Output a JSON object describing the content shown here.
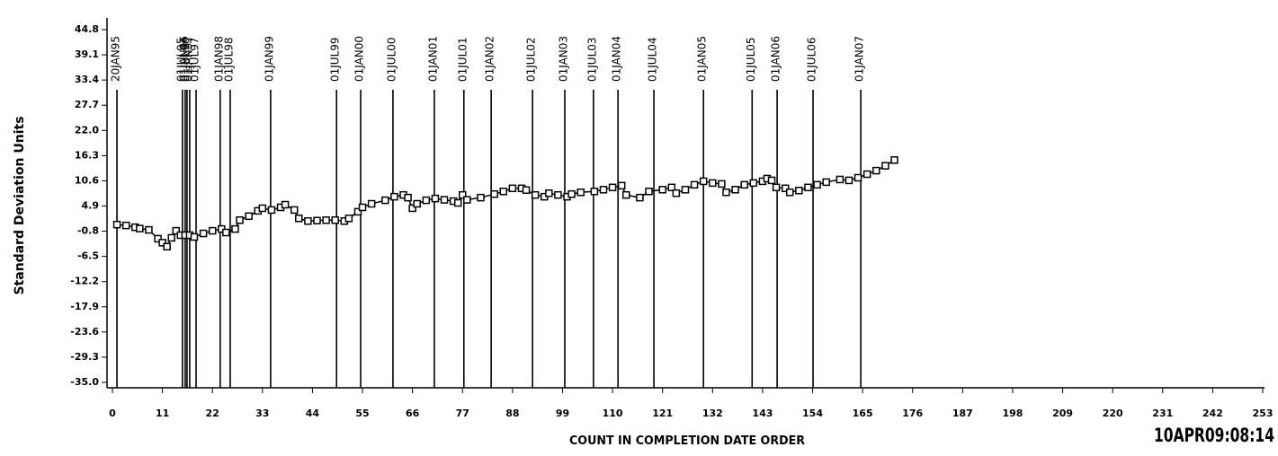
{
  "chart_data": {
    "type": "line",
    "y_label": "Standard Deviation Units",
    "x_label": "COUNT IN COMPLETION DATE ORDER",
    "timestamp": "10APR09:08:14",
    "color": "#000000",
    "marker": "square",
    "xlim": [
      0,
      253
    ],
    "xticks": [
      0,
      11,
      22,
      33,
      44,
      55,
      66,
      77,
      88,
      99,
      110,
      121,
      132,
      143,
      154,
      165,
      176,
      187,
      198,
      209,
      220,
      231,
      242,
      253
    ],
    "ylim": [
      -35,
      44.8
    ],
    "yticks": [
      44.8,
      39.1,
      33.4,
      27.7,
      {
        "value": 22,
        "label": "22.0"
      },
      16.3,
      10.6,
      4.9,
      -0.8,
      -6.5,
      -12.2,
      -17.9,
      -23.6,
      -29.3,
      {
        "value": -35,
        "label": "-35.0"
      }
    ],
    "reference_lines": [
      {
        "value": 1,
        "label": "20JAN95"
      },
      {
        "value": 15.4,
        "label": "01JUL95"
      },
      {
        "value": 16,
        "label": "01JAN96"
      },
      {
        "value": 16.4,
        "label": "01JUL96"
      },
      {
        "value": 17,
        "label": "01JAN97"
      },
      {
        "value": 18.4,
        "label": "01JUL97"
      },
      {
        "value": 23.7,
        "label": "01JAN98"
      },
      {
        "value": 25.9,
        "label": "01JUL98"
      },
      {
        "value": 34.8,
        "label": "01JAN99"
      },
      {
        "value": 49.3,
        "label": "01JUL99"
      },
      {
        "value": 54.6,
        "label": "01JAN00"
      },
      {
        "value": 61.7,
        "label": "01JUL00"
      },
      {
        "value": 70.8,
        "label": "01JAN01"
      },
      {
        "value": 77.3,
        "label": "01JUL01"
      },
      {
        "value": 83.3,
        "label": "01JAN02"
      },
      {
        "value": 92.4,
        "label": "01JUL02"
      },
      {
        "value": 99.5,
        "label": "01JAN03"
      },
      {
        "value": 105.8,
        "label": "01JUL03"
      },
      {
        "value": 111.2,
        "label": "01JAN04"
      },
      {
        "value": 119.1,
        "label": "01JUL04"
      },
      {
        "value": 130,
        "label": "01JAN05"
      },
      {
        "value": 140.7,
        "label": "01JUL05"
      },
      {
        "value": 146.2,
        "label": "01JAN06"
      },
      {
        "value": 154.1,
        "label": "01JUL06"
      },
      {
        "value": 164.6,
        "label": "01JAN07"
      }
    ],
    "x": [
      1,
      3,
      5,
      6,
      8,
      10,
      11,
      12,
      13,
      14,
      15,
      16,
      17,
      18,
      20,
      22,
      24,
      25,
      27,
      28,
      30,
      32,
      33,
      35,
      37,
      38,
      40,
      41,
      43,
      45,
      47,
      49,
      51,
      52,
      54,
      55,
      57,
      60,
      62,
      64,
      65,
      66,
      67,
      69,
      71,
      73,
      75,
      76,
      77,
      78,
      81,
      84,
      86,
      88,
      90,
      91,
      93,
      95,
      96,
      98,
      100,
      101,
      103,
      106,
      108,
      110,
      112,
      113,
      116,
      118,
      121,
      123,
      124,
      126,
      128,
      130,
      132,
      134,
      135,
      137,
      139,
      141,
      143,
      144,
      145,
      146,
      148,
      149,
      151,
      153,
      155,
      157,
      160,
      162,
      164,
      166,
      168,
      170,
      172
    ],
    "values": [
      0.7,
      0.5,
      0.1,
      -0.2,
      -0.5,
      -2.5,
      -3.4,
      -4.3,
      -2.3,
      -0.7,
      -1.7,
      -1.7,
      -1.7,
      -2.1,
      -1.3,
      -0.7,
      -0.3,
      -1.1,
      -0.3,
      1.7,
      2.6,
      3.8,
      4.4,
      4.0,
      4.6,
      5.2,
      4.0,
      2.1,
      1.5,
      1.6,
      1.7,
      1.7,
      1.5,
      2.1,
      3.6,
      4.6,
      5.4,
      6.2,
      7.0,
      7.4,
      6.8,
      4.4,
      5.4,
      6.2,
      6.6,
      6.3,
      6.0,
      5.6,
      7.4,
      6.3,
      6.8,
      7.6,
      8.2,
      8.9,
      8.9,
      8.5,
      7.4,
      7.0,
      7.8,
      7.4,
      7.0,
      7.6,
      8.0,
      8.2,
      8.6,
      9.1,
      9.5,
      7.4,
      6.8,
      8.2,
      8.6,
      9.1,
      7.8,
      8.6,
      9.7,
      10.5,
      10.1,
      9.9,
      8.0,
      8.6,
      9.7,
      10.1,
      10.5,
      11.1,
      10.7,
      9.1,
      8.9,
      8.0,
      8.4,
      9.1,
      9.7,
      10.3,
      10.9,
      10.7,
      11.3,
      12.1,
      12.9,
      14.0,
      15.3
    ]
  }
}
